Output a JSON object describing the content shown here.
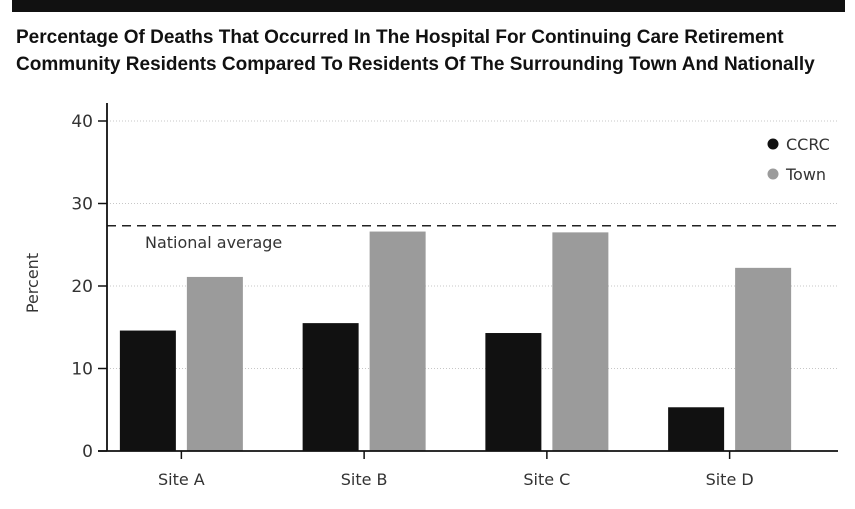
{
  "chart_data": {
    "type": "bar",
    "title_lines": [
      "Percentage Of Deaths That Occurred In The Hospital For Continuing Care Retirement",
      "Community Residents Compared To Residents Of The Surrounding Town And Nationally"
    ],
    "ylabel": "Percent",
    "xlabel": "",
    "ylim": [
      0,
      40
    ],
    "yticks": [
      0,
      10,
      20,
      30,
      40
    ],
    "grid": true,
    "legend_position": "top-right",
    "categories": [
      "Site A",
      "Site B",
      "Site C",
      "Site D"
    ],
    "series": [
      {
        "name": "CCRC",
        "color": "#111111",
        "values": [
          14.6,
          15.5,
          14.3,
          5.3
        ]
      },
      {
        "name": "Town",
        "color": "#9b9b9b",
        "values": [
          21.1,
          26.6,
          26.5,
          22.2
        ]
      }
    ],
    "reference_line": {
      "label": "National average",
      "value": 27.3
    }
  }
}
